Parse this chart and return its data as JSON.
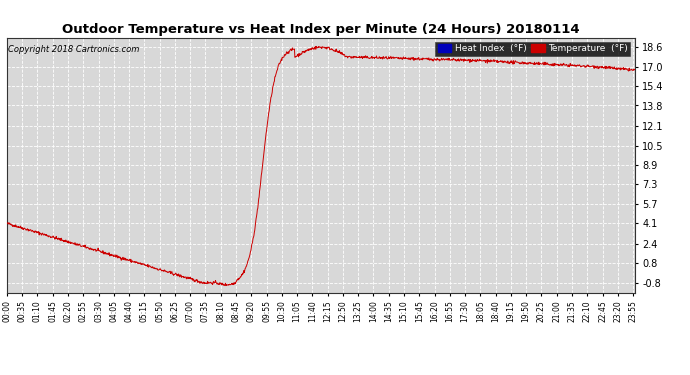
{
  "title": "Outdoor Temperature vs Heat Index per Minute (24 Hours) 20180114",
  "copyright": "Copyright 2018 Cartronics.com",
  "ylabel_right_ticks": [
    -0.8,
    0.8,
    2.4,
    4.1,
    5.7,
    7.3,
    8.9,
    10.5,
    12.1,
    13.8,
    15.4,
    17.0,
    18.6
  ],
  "ylim": [
    -1.6,
    19.4
  ],
  "line_color": "#cc0000",
  "bg_color": "#ffffff",
  "plot_bg_color": "#d8d8d8",
  "grid_color": "#ffffff",
  "legend_heat_index_bg": "#0000bb",
  "legend_temp_bg": "#cc0000",
  "total_minutes": 1440,
  "tick_step": 35,
  "noise_seed": 42,
  "noise_scale": 0.06
}
